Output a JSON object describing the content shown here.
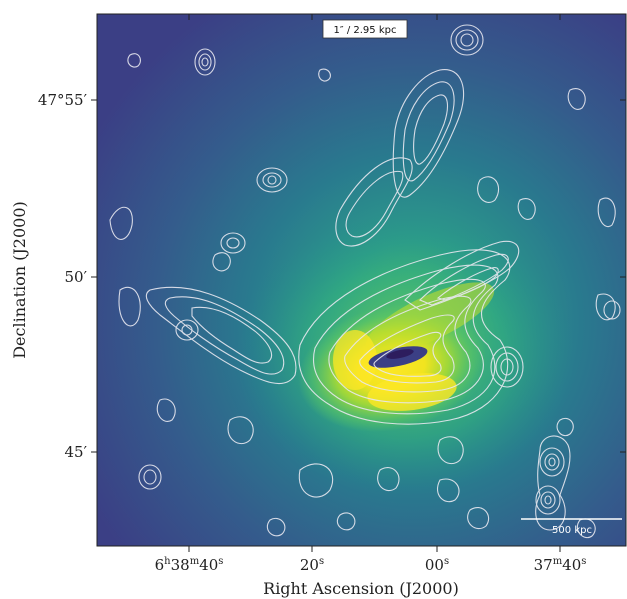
{
  "figure": {
    "scale_label": "1″ / 2.95 kpc",
    "scalebar_label": "500 kpc",
    "xlabel": "Right Ascension (J2000)",
    "ylabel": "Declination (J2000)",
    "x_ticks": [
      {
        "h": "6",
        "h_sup": "h",
        "m": "38",
        "m_sup": "m",
        "s": "40",
        "s_sup": "s"
      },
      {
        "s": "20",
        "s_sup": "s"
      },
      {
        "s": "00",
        "s_sup": "s"
      },
      {
        "m": "37",
        "m_sup": "m",
        "s": "40",
        "s_sup": "s"
      }
    ],
    "y_ticks": [
      "47°55′",
      "50′",
      "45′"
    ]
  },
  "colors": {
    "colormap": [
      "#440154",
      "#3b528b",
      "#21918c",
      "#5ec962",
      "#fde725"
    ],
    "contour": "#e8e8f0",
    "background": "#ffffff"
  }
}
